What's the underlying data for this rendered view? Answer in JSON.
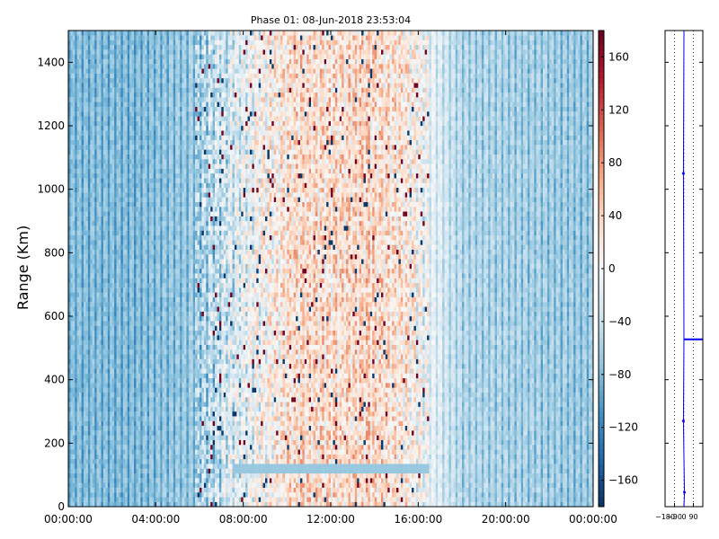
{
  "chart_data": {
    "type": "heatmap",
    "title": "Phase 01: 08-Jun-2018 23:53:04",
    "xlabel": "",
    "ylabel": "Range (Km)",
    "xlim": [
      0,
      24
    ],
    "ylim": [
      0,
      1500
    ],
    "x_ticks": [
      {
        "hour": 0,
        "label": "00:00:00"
      },
      {
        "hour": 4,
        "label": "04:00:00"
      },
      {
        "hour": 8,
        "label": "08:00:00"
      },
      {
        "hour": 12,
        "label": "12:00:00"
      },
      {
        "hour": 16,
        "label": "16:00:00"
      },
      {
        "hour": 20,
        "label": "20:00:00"
      },
      {
        "hour": 24,
        "label": "00:00:00"
      }
    ],
    "y_ticks": [
      0,
      200,
      400,
      600,
      800,
      1000,
      1200,
      1400
    ],
    "colorbar": {
      "range": [
        -180,
        180
      ],
      "ticks": [
        -160,
        -120,
        -80,
        -40,
        0,
        40,
        80,
        120,
        160
      ],
      "colormap": "RdBu_r",
      "low_color": "#053061",
      "mid_color": "#f7f7f7",
      "high_color": "#67001f"
    },
    "phase_profile_by_hour": [
      {
        "hour": 0,
        "phase": -70
      },
      {
        "hour": 3,
        "phase": -72
      },
      {
        "hour": 5.5,
        "phase": -60
      },
      {
        "hour": 7,
        "phase": -25
      },
      {
        "hour": 9,
        "phase": 15
      },
      {
        "hour": 10.5,
        "phase": 45
      },
      {
        "hour": 12,
        "phase": 40
      },
      {
        "hour": 13.5,
        "phase": 48
      },
      {
        "hour": 15.5,
        "phase": 30
      },
      {
        "hour": 16.7,
        "phase": -10
      },
      {
        "hour": 18,
        "phase": -45
      },
      {
        "hour": 24,
        "phase": -60
      }
    ],
    "side_panel": {
      "xlim": [
        -180,
        180
      ],
      "ylim": [
        0,
        1500
      ],
      "x_tick_labels": [
        "−180",
        "−90",
        "0",
        "90"
      ],
      "x_tick_values": [
        -180,
        -90,
        0,
        90
      ],
      "line_color": "#0000ff",
      "profile": [
        {
          "range": 0,
          "phase": 0
        },
        {
          "range": 40,
          "phase": 5
        },
        {
          "range": 270,
          "phase": -5
        },
        {
          "range": 530,
          "phase": 0
        },
        {
          "range": 1050,
          "phase": -5
        },
        {
          "range": 1500,
          "phase": 0
        }
      ],
      "markers": [
        {
          "range": 45,
          "phase": 5
        },
        {
          "range": 270,
          "phase": -5
        },
        {
          "range": 1050,
          "phase": -5
        }
      ],
      "horizontal_segment": {
        "range": 527,
        "from": 0,
        "to": 180
      }
    }
  }
}
